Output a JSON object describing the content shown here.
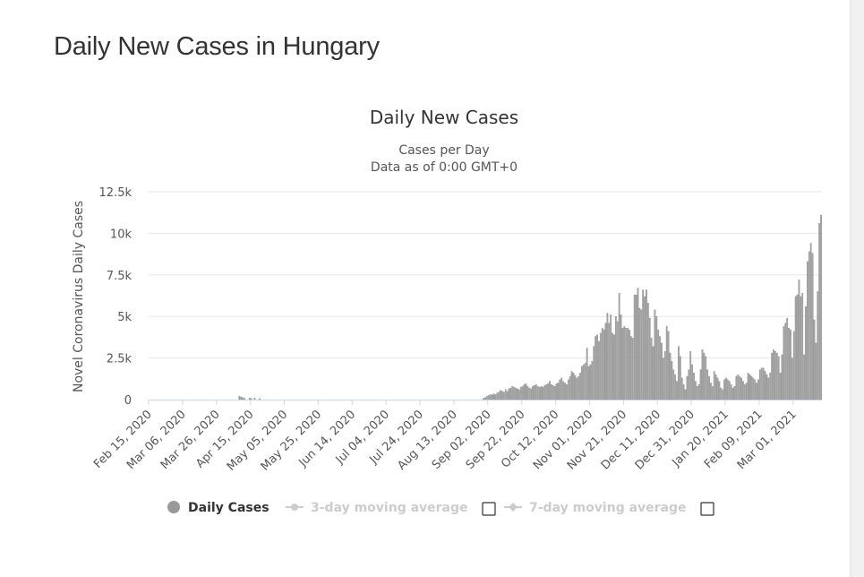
{
  "page": {
    "title": "Daily New Cases in Hungary"
  },
  "chart_data": {
    "type": "bar",
    "title": "Daily New Cases",
    "subtitle_lines": [
      "Cases per Day",
      "Data as of 0:00 GMT+0"
    ],
    "ylabel": "Novel Coronavirus Daily Cases",
    "xlabel": "",
    "x_start": "2020-02-15",
    "x_end": "2021-03-17",
    "ylim": [
      0,
      12500
    ],
    "y_ticks": [
      {
        "value": 0,
        "label": "0"
      },
      {
        "value": 2500,
        "label": "2.5k"
      },
      {
        "value": 5000,
        "label": "5k"
      },
      {
        "value": 7500,
        "label": "7.5k"
      },
      {
        "value": 10000,
        "label": "10k"
      },
      {
        "value": 12500,
        "label": "12.5k"
      }
    ],
    "x_ticks": [
      {
        "date": "2020-02-15",
        "label": "Feb 15, 2020"
      },
      {
        "date": "2020-03-06",
        "label": "Mar 06, 2020"
      },
      {
        "date": "2020-03-26",
        "label": "Mar 26, 2020"
      },
      {
        "date": "2020-04-15",
        "label": "Apr 15, 2020"
      },
      {
        "date": "2020-05-05",
        "label": "May 05, 2020"
      },
      {
        "date": "2020-05-25",
        "label": "May 25, 2020"
      },
      {
        "date": "2020-06-14",
        "label": "Jun 14, 2020"
      },
      {
        "date": "2020-07-04",
        "label": "Jul 04, 2020"
      },
      {
        "date": "2020-07-24",
        "label": "Jul 24, 2020"
      },
      {
        "date": "2020-08-13",
        "label": "Aug 13, 2020"
      },
      {
        "date": "2020-09-02",
        "label": "Sep 02, 2020"
      },
      {
        "date": "2020-09-22",
        "label": "Sep 22, 2020"
      },
      {
        "date": "2020-10-12",
        "label": "Oct 12, 2020"
      },
      {
        "date": "2020-11-01",
        "label": "Nov 01, 2020"
      },
      {
        "date": "2020-11-21",
        "label": "Nov 21, 2020"
      },
      {
        "date": "2020-12-11",
        "label": "Dec 11, 2020"
      },
      {
        "date": "2020-12-31",
        "label": "Dec 31, 2020"
      },
      {
        "date": "2021-01-20",
        "label": "Jan 20, 2021"
      },
      {
        "date": "2021-02-09",
        "label": "Feb 09, 2021"
      },
      {
        "date": "2021-03-01",
        "label": "Mar 01, 2021"
      }
    ],
    "series": [
      {
        "name": "Daily Cases",
        "color": "#a6a6a6",
        "points": [
          [
            "2020-04-08",
            210
          ],
          [
            "2020-04-09",
            160
          ],
          [
            "2020-04-10",
            120
          ],
          [
            "2020-04-11",
            80
          ],
          [
            "2020-04-14",
            90
          ],
          [
            "2020-04-15",
            70
          ],
          [
            "2020-04-17",
            100
          ],
          [
            "2020-04-20",
            60
          ],
          [
            "2020-08-30",
            80
          ],
          [
            "2020-08-31",
            120
          ],
          [
            "2020-09-01",
            200
          ],
          [
            "2020-09-02",
            250
          ],
          [
            "2020-09-03",
            300
          ],
          [
            "2020-09-04",
            280
          ],
          [
            "2020-09-05",
            350
          ],
          [
            "2020-09-06",
            300
          ],
          [
            "2020-09-07",
            400
          ],
          [
            "2020-09-08",
            450
          ],
          [
            "2020-09-09",
            550
          ],
          [
            "2020-09-10",
            500
          ],
          [
            "2020-09-11",
            450
          ],
          [
            "2020-09-12",
            600
          ],
          [
            "2020-09-13",
            500
          ],
          [
            "2020-09-14",
            650
          ],
          [
            "2020-09-15",
            700
          ],
          [
            "2020-09-16",
            800
          ],
          [
            "2020-09-17",
            750
          ],
          [
            "2020-09-18",
            700
          ],
          [
            "2020-09-19",
            650
          ],
          [
            "2020-09-20",
            600
          ],
          [
            "2020-09-21",
            750
          ],
          [
            "2020-09-22",
            800
          ],
          [
            "2020-09-23",
            900
          ],
          [
            "2020-09-24",
            950
          ],
          [
            "2020-09-25",
            800
          ],
          [
            "2020-09-26",
            700
          ],
          [
            "2020-09-27",
            650
          ],
          [
            "2020-09-28",
            800
          ],
          [
            "2020-09-29",
            850
          ],
          [
            "2020-09-30",
            900
          ],
          [
            "2020-10-01",
            800
          ],
          [
            "2020-10-02",
            750
          ],
          [
            "2020-10-03",
            800
          ],
          [
            "2020-10-04",
            750
          ],
          [
            "2020-10-05",
            850
          ],
          [
            "2020-10-06",
            900
          ],
          [
            "2020-10-07",
            950
          ],
          [
            "2020-10-08",
            1100
          ],
          [
            "2020-10-09",
            900
          ],
          [
            "2020-10-10",
            850
          ],
          [
            "2020-10-11",
            800
          ],
          [
            "2020-10-12",
            950
          ],
          [
            "2020-10-13",
            1000
          ],
          [
            "2020-10-14",
            1200
          ],
          [
            "2020-10-15",
            1300
          ],
          [
            "2020-10-16",
            1100
          ],
          [
            "2020-10-17",
            1000
          ],
          [
            "2020-10-18",
            900
          ],
          [
            "2020-10-19",
            1200
          ],
          [
            "2020-10-20",
            1400
          ],
          [
            "2020-10-21",
            1700
          ],
          [
            "2020-10-22",
            1600
          ],
          [
            "2020-10-23",
            1450
          ],
          [
            "2020-10-24",
            1300
          ],
          [
            "2020-10-25",
            1400
          ],
          [
            "2020-10-26",
            1600
          ],
          [
            "2020-10-27",
            2000
          ],
          [
            "2020-10-28",
            2100
          ],
          [
            "2020-10-29",
            2200
          ],
          [
            "2020-10-30",
            3100
          ],
          [
            "2020-10-31",
            2000
          ],
          [
            "2020-11-01",
            2100
          ],
          [
            "2020-11-02",
            2300
          ],
          [
            "2020-11-03",
            3200
          ],
          [
            "2020-11-04",
            3800
          ],
          [
            "2020-11-05",
            3900
          ],
          [
            "2020-11-06",
            3500
          ],
          [
            "2020-11-07",
            4000
          ],
          [
            "2020-11-08",
            4300
          ],
          [
            "2020-11-09",
            4200
          ],
          [
            "2020-11-10",
            4600
          ],
          [
            "2020-11-11",
            5200
          ],
          [
            "2020-11-12",
            4600
          ],
          [
            "2020-11-13",
            5100
          ],
          [
            "2020-11-14",
            4000
          ],
          [
            "2020-11-15",
            3900
          ],
          [
            "2020-11-16",
            5000
          ],
          [
            "2020-11-17",
            4700
          ],
          [
            "2020-11-18",
            6400
          ],
          [
            "2020-11-19",
            5100
          ],
          [
            "2020-11-20",
            4300
          ],
          [
            "2020-11-21",
            4400
          ],
          [
            "2020-11-22",
            4300
          ],
          [
            "2020-11-23",
            4300
          ],
          [
            "2020-11-24",
            4200
          ],
          [
            "2020-11-25",
            3800
          ],
          [
            "2020-11-26",
            3700
          ],
          [
            "2020-11-27",
            6300
          ],
          [
            "2020-11-28",
            6300
          ],
          [
            "2020-11-29",
            6700
          ],
          [
            "2020-11-30",
            5500
          ],
          [
            "2020-12-01",
            5400
          ],
          [
            "2020-12-02",
            6600
          ],
          [
            "2020-12-03",
            6200
          ],
          [
            "2020-12-04",
            6600
          ],
          [
            "2020-12-05",
            5800
          ],
          [
            "2020-12-06",
            4900
          ],
          [
            "2020-12-07",
            3700
          ],
          [
            "2020-12-08",
            3200
          ],
          [
            "2020-12-09",
            5400
          ],
          [
            "2020-12-10",
            5000
          ],
          [
            "2020-12-11",
            4200
          ],
          [
            "2020-12-12",
            3800
          ],
          [
            "2020-12-13",
            3400
          ],
          [
            "2020-12-14",
            2500
          ],
          [
            "2020-12-15",
            2900
          ],
          [
            "2020-12-16",
            4400
          ],
          [
            "2020-12-17",
            4100
          ],
          [
            "2020-12-18",
            2800
          ],
          [
            "2020-12-19",
            2300
          ],
          [
            "2020-12-20",
            1800
          ],
          [
            "2020-12-21",
            1500
          ],
          [
            "2020-12-22",
            1100
          ],
          [
            "2020-12-23",
            3200
          ],
          [
            "2020-12-24",
            2600
          ],
          [
            "2020-12-25",
            1300
          ],
          [
            "2020-12-26",
            900
          ],
          [
            "2020-12-27",
            600
          ],
          [
            "2020-12-28",
            1400
          ],
          [
            "2020-12-29",
            1800
          ],
          [
            "2020-12-30",
            2900
          ],
          [
            "2020-12-31",
            2100
          ],
          [
            "2021-01-01",
            1600
          ],
          [
            "2021-01-02",
            1100
          ],
          [
            "2021-01-03",
            800
          ],
          [
            "2021-01-04",
            900
          ],
          [
            "2021-01-05",
            1800
          ],
          [
            "2021-01-06",
            3000
          ],
          [
            "2021-01-07",
            2800
          ],
          [
            "2021-01-08",
            2600
          ],
          [
            "2021-01-09",
            1800
          ],
          [
            "2021-01-10",
            1400
          ],
          [
            "2021-01-11",
            1000
          ],
          [
            "2021-01-12",
            800
          ],
          [
            "2021-01-13",
            1700
          ],
          [
            "2021-01-14",
            1500
          ],
          [
            "2021-01-15",
            1300
          ],
          [
            "2021-01-16",
            1100
          ],
          [
            "2021-01-17",
            700
          ],
          [
            "2021-01-18",
            600
          ],
          [
            "2021-01-19",
            1200
          ],
          [
            "2021-01-20",
            1300
          ],
          [
            "2021-01-21",
            1200
          ],
          [
            "2021-01-22",
            1100
          ],
          [
            "2021-01-23",
            900
          ],
          [
            "2021-01-24",
            700
          ],
          [
            "2021-01-25",
            800
          ],
          [
            "2021-01-26",
            1400
          ],
          [
            "2021-01-27",
            1500
          ],
          [
            "2021-01-28",
            1400
          ],
          [
            "2021-01-29",
            1300
          ],
          [
            "2021-01-30",
            1100
          ],
          [
            "2021-01-31",
            900
          ],
          [
            "2021-02-01",
            1000
          ],
          [
            "2021-02-02",
            1600
          ],
          [
            "2021-02-03",
            1500
          ],
          [
            "2021-02-04",
            1400
          ],
          [
            "2021-02-05",
            1300
          ],
          [
            "2021-02-06",
            1200
          ],
          [
            "2021-02-07",
            1000
          ],
          [
            "2021-02-08",
            1200
          ],
          [
            "2021-02-09",
            1800
          ],
          [
            "2021-02-10",
            1900
          ],
          [
            "2021-02-11",
            1900
          ],
          [
            "2021-02-12",
            1700
          ],
          [
            "2021-02-13",
            1500
          ],
          [
            "2021-02-14",
            1300
          ],
          [
            "2021-02-15",
            1600
          ],
          [
            "2021-02-16",
            2800
          ],
          [
            "2021-02-17",
            3000
          ],
          [
            "2021-02-18",
            2900
          ],
          [
            "2021-02-19",
            2800
          ],
          [
            "2021-02-20",
            2600
          ],
          [
            "2021-02-21",
            1600
          ],
          [
            "2021-02-22",
            2700
          ],
          [
            "2021-02-23",
            4400
          ],
          [
            "2021-02-24",
            4600
          ],
          [
            "2021-02-25",
            4900
          ],
          [
            "2021-02-26",
            4300
          ],
          [
            "2021-02-27",
            4200
          ],
          [
            "2021-02-28",
            2500
          ],
          [
            "2021-03-01",
            4100
          ],
          [
            "2021-03-02",
            6200
          ],
          [
            "2021-03-03",
            6300
          ],
          [
            "2021-03-04",
            7200
          ],
          [
            "2021-03-05",
            6200
          ],
          [
            "2021-03-06",
            6400
          ],
          [
            "2021-03-07",
            2700
          ],
          [
            "2021-03-08",
            5600
          ],
          [
            "2021-03-09",
            8300
          ],
          [
            "2021-03-10",
            8900
          ],
          [
            "2021-03-11",
            9400
          ],
          [
            "2021-03-12",
            8800
          ],
          [
            "2021-03-13",
            4800
          ],
          [
            "2021-03-14",
            3400
          ],
          [
            "2021-03-15",
            6500
          ],
          [
            "2021-03-16",
            10600
          ],
          [
            "2021-03-17",
            11100
          ]
        ]
      }
    ],
    "legend": {
      "position": "bottom-center",
      "items": [
        {
          "label": "Daily Cases",
          "symbol": "circle",
          "color": "#999999",
          "text_color": "#333333",
          "active": true
        },
        {
          "label": "3-day moving average",
          "symbol": "line-circle",
          "color": "#cccccc",
          "text_color": "#cccccc",
          "active": false,
          "has_checkbox": true
        },
        {
          "label": "7-day moving average",
          "symbol": "line-diamond",
          "color": "#cccccc",
          "text_color": "#cccccc",
          "active": false,
          "has_checkbox": true
        }
      ]
    },
    "grid": true
  }
}
